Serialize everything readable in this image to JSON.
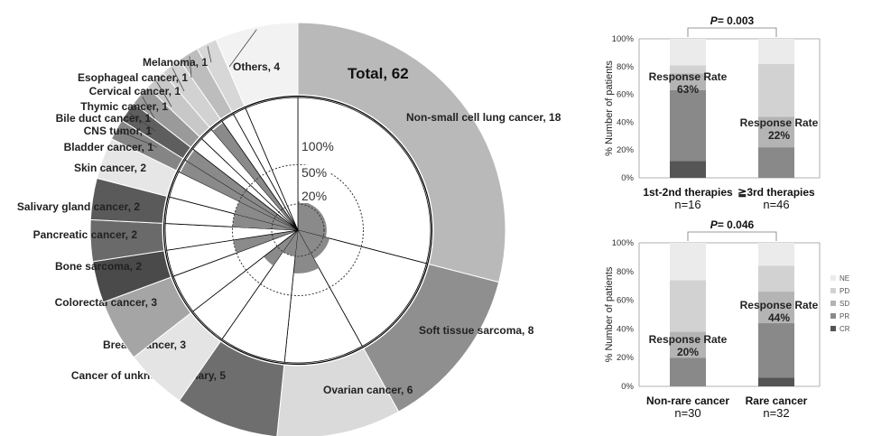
{
  "chart_data": [
    {
      "type": "pie",
      "title": "Total, 62",
      "slices": [
        {
          "label": "Non-small cell lung cancer, 18",
          "value": 18,
          "color": "#b9b9b9",
          "response": 0.22
        },
        {
          "label": "Soft tissue sarcoma, 8",
          "value": 8,
          "color": "#8f8f8f",
          "response": 0.25
        },
        {
          "label": "Ovarian cancer, 6",
          "value": 6,
          "color": "#dadada",
          "response": 0.33
        },
        {
          "label": "Cancer of unknown primary, 5",
          "value": 5,
          "color": "#6e6e6e",
          "response": 0.2
        },
        {
          "label": "Breast cancer, 3",
          "value": 3,
          "color": "#e4e4e4",
          "response": 0.33
        },
        {
          "label": "Colorectal cancer, 3",
          "value": 3,
          "color": "#a5a5a5",
          "response": 0.0
        },
        {
          "label": "Bone sarcoma, 2",
          "value": 2,
          "color": "#4a4a4a",
          "response": 0.5
        },
        {
          "label": "Pancreatic cancer, 2",
          "value": 2,
          "color": "#6a6a6a",
          "response": 0.0
        },
        {
          "label": "Salivary gland cancer, 2",
          "value": 2,
          "color": "#5a5a5a",
          "response": 0.5
        },
        {
          "label": "Skin cancer, 2",
          "value": 2,
          "color": "#e6e6e6",
          "response": 0.5
        },
        {
          "label": "Bladder cancer, 1",
          "value": 1,
          "color": "#858585",
          "response": 1.0
        },
        {
          "label": "CNS tumor, 1",
          "value": 1,
          "color": "#5e5e5e",
          "response": 1.0
        },
        {
          "label": "Bile duct cancer, 1",
          "value": 1,
          "color": "#9a9a9a",
          "response": 0.0
        },
        {
          "label": "Thymic cancer, 1",
          "value": 1,
          "color": "#c8c8c8",
          "response": 0.0
        },
        {
          "label": "Cervical cancer, 1",
          "value": 1,
          "color": "#d2d2d2",
          "response": 1.0
        },
        {
          "label": "Esophageal cancer, 1",
          "value": 1,
          "color": "#bdbdbd",
          "response": 0.0
        },
        {
          "label": "Melanoma, 1",
          "value": 1,
          "color": "#d7d7d7",
          "response": 0.0
        },
        {
          "label": "Others, 4",
          "value": 4,
          "color": "#f2f2f2",
          "response": 0.0
        }
      ],
      "ring_labels": [
        "100%",
        "50%",
        "20%"
      ]
    },
    {
      "type": "bar",
      "stacked": true,
      "ylabel": "% Number of patients",
      "yticks": [
        "0%",
        "20%",
        "40%",
        "60%",
        "80%",
        "100%"
      ],
      "categories": [
        {
          "name": "1st-2nd therapies",
          "n": "n=16"
        },
        {
          "name": "≧3rd therapies",
          "n": "n=46"
        }
      ],
      "series": [
        {
          "name": "CR",
          "values": [
            12,
            0
          ],
          "color": "#555555"
        },
        {
          "name": "PR",
          "values": [
            51,
            22
          ],
          "color": "#898989"
        },
        {
          "name": "SD",
          "values": [
            12,
            22
          ],
          "color": "#b4b4b4"
        },
        {
          "name": "PD",
          "values": [
            6,
            38
          ],
          "color": "#d2d2d2"
        },
        {
          "name": "NE",
          "values": [
            19,
            18
          ],
          "color": "#ebebeb"
        }
      ],
      "response_labels": [
        [
          "Response Rate",
          "63%"
        ],
        [
          "Response Rate",
          "22%"
        ]
      ],
      "pvalue": {
        "prefix": "P",
        "text": "= 0.003"
      }
    },
    {
      "type": "bar",
      "stacked": true,
      "ylabel": "% Number of patients",
      "yticks": [
        "0%",
        "20%",
        "40%",
        "60%",
        "80%",
        "100%"
      ],
      "categories": [
        {
          "name": "Non-rare cancer",
          "n": "n=30"
        },
        {
          "name": "Rare cancer",
          "n": "n=32"
        }
      ],
      "series": [
        {
          "name": "CR",
          "values": [
            0,
            6
          ],
          "color": "#555555"
        },
        {
          "name": "PR",
          "values": [
            20,
            38
          ],
          "color": "#898989"
        },
        {
          "name": "SD",
          "values": [
            18,
            22
          ],
          "color": "#b4b4b4"
        },
        {
          "name": "PD",
          "values": [
            36,
            18
          ],
          "color": "#d2d2d2"
        },
        {
          "name": "NE",
          "values": [
            26,
            16
          ],
          "color": "#ebebeb"
        }
      ],
      "response_labels": [
        [
          "Response Rate",
          "20%"
        ],
        [
          "Response Rate",
          "44%"
        ]
      ],
      "pvalue": {
        "prefix": "P",
        "text": "= 0.046"
      },
      "legend": [
        "NE",
        "PD",
        "SD",
        "PR",
        "CR"
      ]
    }
  ]
}
